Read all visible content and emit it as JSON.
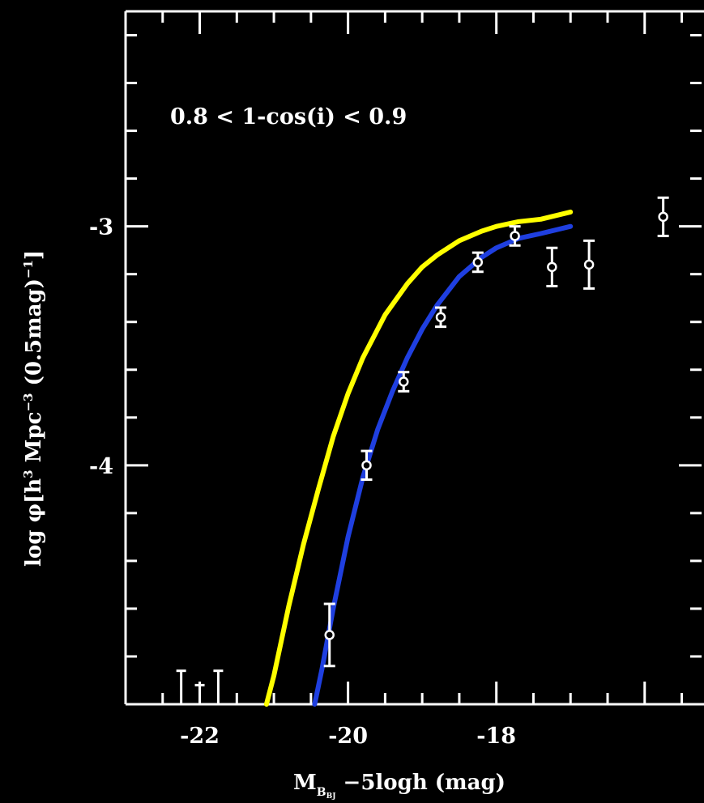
{
  "chart_data": {
    "type": "line",
    "title": "",
    "annotation": "0.8 < 1-cos(i) < 0.9",
    "xlabel": {
      "text": "M",
      "subscript": "B",
      "subsubscript": "BJ",
      "suffix": " −5logh (mag)"
    },
    "ylabel": {
      "prefix": "log φ[h",
      "sup1": "3",
      "mid": " Mpc",
      "sup2": "−3",
      "suffix2": " (0.5mag)",
      "sup3": "−1",
      "end": "]"
    },
    "xlim": [
      -23.0,
      -15.2
    ],
    "ylim": [
      -5.0,
      -2.1
    ],
    "xticks_major": [
      -22,
      -20,
      -18,
      -16
    ],
    "xtick_labels": [
      "-22",
      "-20",
      "-18"
    ],
    "yticks_major": [
      -5,
      -4,
      -3
    ],
    "ytick_labels": [
      "-3",
      "-4"
    ],
    "grid": false,
    "legend": "none",
    "colors": {
      "background": "#000000",
      "axes": "#ffffff",
      "yellow_curve": "#ffff00",
      "blue_curve": "#1f3fe0",
      "points": "#ffffff"
    },
    "series": [
      {
        "style": "yellow-line",
        "x": [
          -21.1,
          -21.0,
          -20.8,
          -20.6,
          -20.4,
          -20.2,
          -20.0,
          -19.8,
          -19.5,
          -19.2,
          -19.0,
          -18.8,
          -18.5,
          -18.2,
          -18.0,
          -17.7,
          -17.4,
          -17.0
        ],
        "y": [
          -5.0,
          -4.88,
          -4.59,
          -4.33,
          -4.1,
          -3.88,
          -3.7,
          -3.55,
          -3.37,
          -3.24,
          -3.17,
          -3.12,
          -3.06,
          -3.02,
          -3.0,
          -2.98,
          -2.97,
          -2.94
        ]
      },
      {
        "style": "blue-line",
        "x": [
          -20.45,
          -20.35,
          -20.2,
          -20.0,
          -19.8,
          -19.6,
          -19.4,
          -19.2,
          -19.0,
          -18.8,
          -18.5,
          -18.2,
          -18.0,
          -17.7,
          -17.4,
          -17.0
        ],
        "y": [
          -5.0,
          -4.85,
          -4.6,
          -4.3,
          -4.05,
          -3.85,
          -3.69,
          -3.55,
          -3.43,
          -3.33,
          -3.21,
          -3.13,
          -3.09,
          -3.05,
          -3.03,
          -3.0
        ]
      },
      {
        "style": "data-points",
        "x": [
          -20.25,
          -19.75,
          -19.25,
          -18.75,
          -18.25,
          -17.75,
          -17.25,
          -16.75,
          -15.75
        ],
        "y": [
          -4.71,
          -4.0,
          -3.65,
          -3.38,
          -3.15,
          -3.04,
          -3.17,
          -3.16,
          -2.96
        ],
        "yerr": [
          0.13,
          0.06,
          0.04,
          0.04,
          0.04,
          0.04,
          0.08,
          0.1,
          0.08
        ]
      },
      {
        "style": "upper-limits",
        "x": [
          -22.25,
          -22.0,
          -21.75
        ],
        "y": [
          -4.86,
          -4.92,
          -4.86
        ]
      }
    ]
  }
}
